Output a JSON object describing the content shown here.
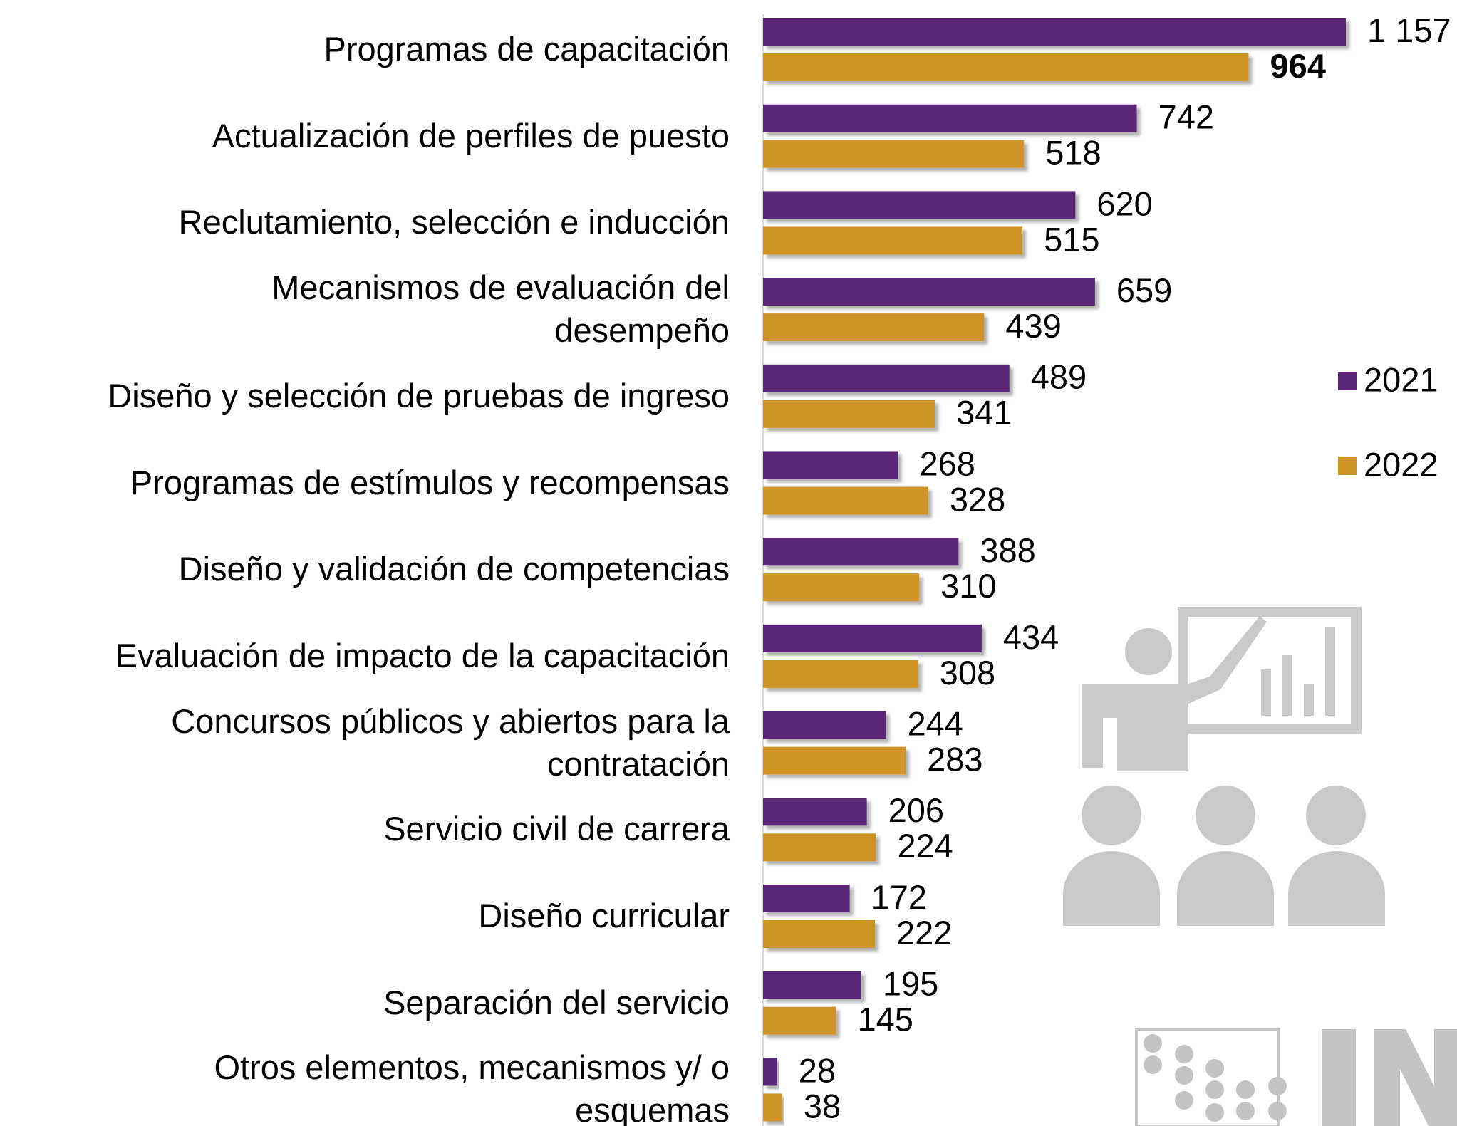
{
  "chart_data": {
    "type": "barh",
    "categories": [
      "Programas de capacitación",
      "Actualización de perfiles de puesto",
      "Reclutamiento, selección e inducción",
      "Mecanismos de evaluación del\ndesempeño",
      "Diseño y selección de pruebas de ingreso",
      "Programas de estímulos y recompensas",
      "Diseño y validación de competencias",
      "Evaluación de impacto de la capacitación",
      "Concursos públicos y abiertos para la\ncontratación",
      "Servicio civil de carrera",
      "Diseño curricular",
      "Separación del servicio",
      "Otros elementos, mecanismos y/ o\nesquemas"
    ],
    "series": [
      {
        "name": "2021",
        "color": "#5b2677",
        "values": [
          1157,
          742,
          620,
          659,
          489,
          268,
          388,
          434,
          244,
          206,
          172,
          195,
          28
        ],
        "value_labels": [
          "1 157",
          "742",
          "620",
          "659",
          "489",
          "268",
          "388",
          "434",
          "244",
          "206",
          "172",
          "195",
          "28"
        ]
      },
      {
        "name": "2022",
        "color": "#d09425",
        "values": [
          964,
          518,
          515,
          439,
          341,
          328,
          310,
          308,
          283,
          224,
          222,
          145,
          38
        ]
      }
    ],
    "legend": "right"
  }
}
